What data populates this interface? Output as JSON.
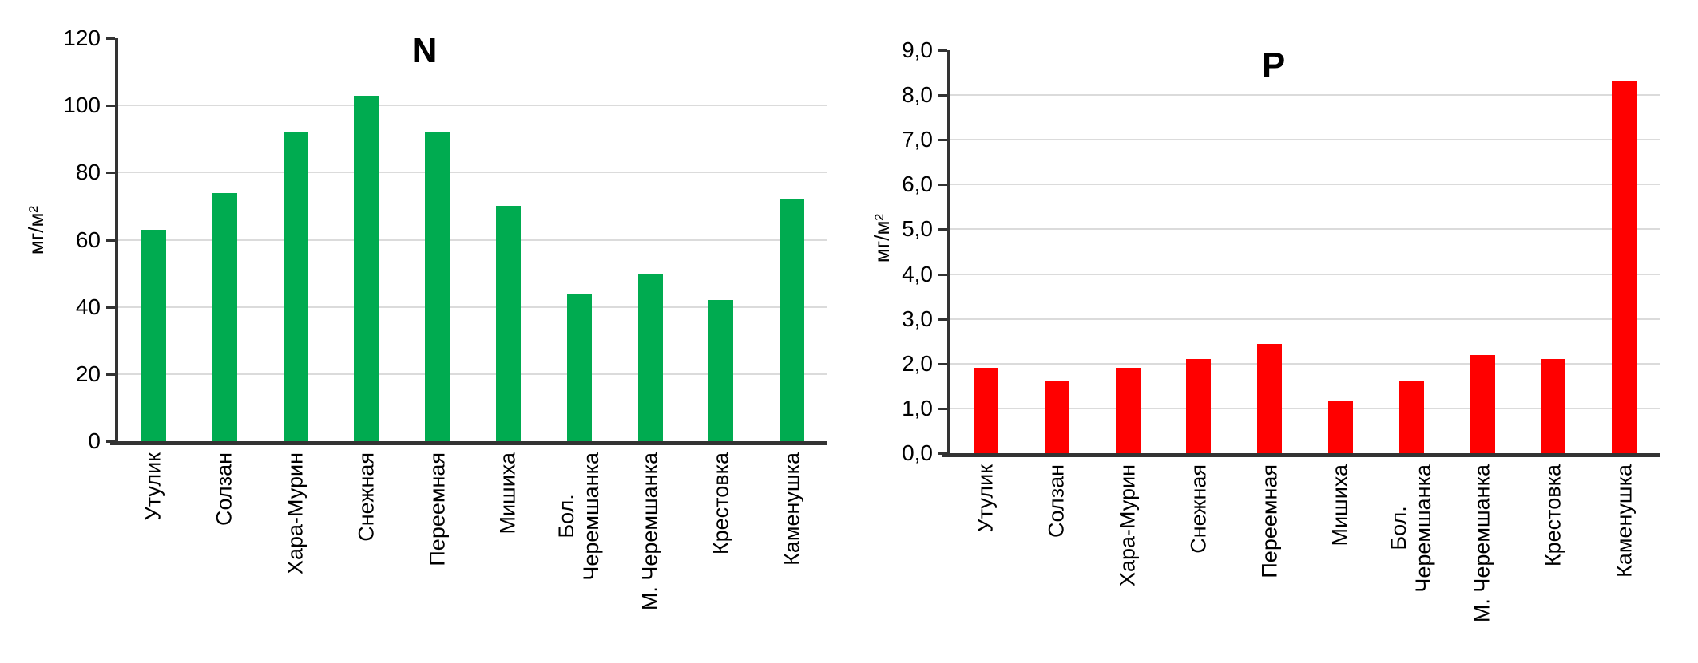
{
  "figure": {
    "background": "#ffffff",
    "gridline_color": "#DBDBDB",
    "axis_color": "#333333"
  },
  "chart_data": [
    {
      "type": "bar",
      "title": "N",
      "ylabel": "мг/м²",
      "bar_color": "#00AB50",
      "ylim": [
        0,
        120
      ],
      "ytick_step": 20,
      "ytick_labels": [
        "0",
        "20",
        "40",
        "60",
        "80",
        "100",
        "120"
      ],
      "grid": true,
      "legend": "none",
      "categories": [
        "Утулик",
        "Солзан",
        "Хара-Мурин",
        "Снежная",
        "Переемная",
        "Мишиха",
        "Бол. Черемшанка",
        "М. Черемшанка",
        "Крестовка",
        "Каменушка"
      ],
      "category_display_labels": [
        "Утулик",
        "Солзан",
        "Хара-Мурин",
        "Снежная",
        "Переемная",
        "Мишиха",
        "Бол.\nЧеремшанка",
        "М. Черемшанка",
        "Крестовка",
        "Каменушка"
      ],
      "values": [
        63,
        74,
        92,
        103,
        92,
        70,
        44,
        50,
        42,
        72
      ]
    },
    {
      "type": "bar",
      "title": "P",
      "ylabel": "мг/м²",
      "bar_color": "#FF0000",
      "ylim": [
        0,
        9
      ],
      "ytick_step": 1,
      "ytick_labels": [
        "0,0",
        "1,0",
        "2,0",
        "3,0",
        "4,0",
        "5,0",
        "6,0",
        "7,0",
        "8,0",
        "9,0"
      ],
      "grid": true,
      "legend": "none",
      "categories": [
        "Утулик",
        "Солзан",
        "Хара-Мурин",
        "Снежная",
        "Переемная",
        "Мишиха",
        "Бол. Черемшанка",
        "М. Черемшанка",
        "Крестовка",
        "Каменушка"
      ],
      "category_display_labels": [
        "Утулик",
        "Солзан",
        "Хара-Мурин",
        "Снежная",
        "Переемная",
        "Мишиха",
        "Бол.\nЧеремшанка",
        "М. Черемшанка",
        "Крестовка",
        "Каменушка"
      ],
      "values": [
        1.9,
        1.6,
        1.9,
        2.1,
        2.45,
        1.15,
        1.6,
        2.2,
        2.1,
        8.3
      ]
    }
  ]
}
